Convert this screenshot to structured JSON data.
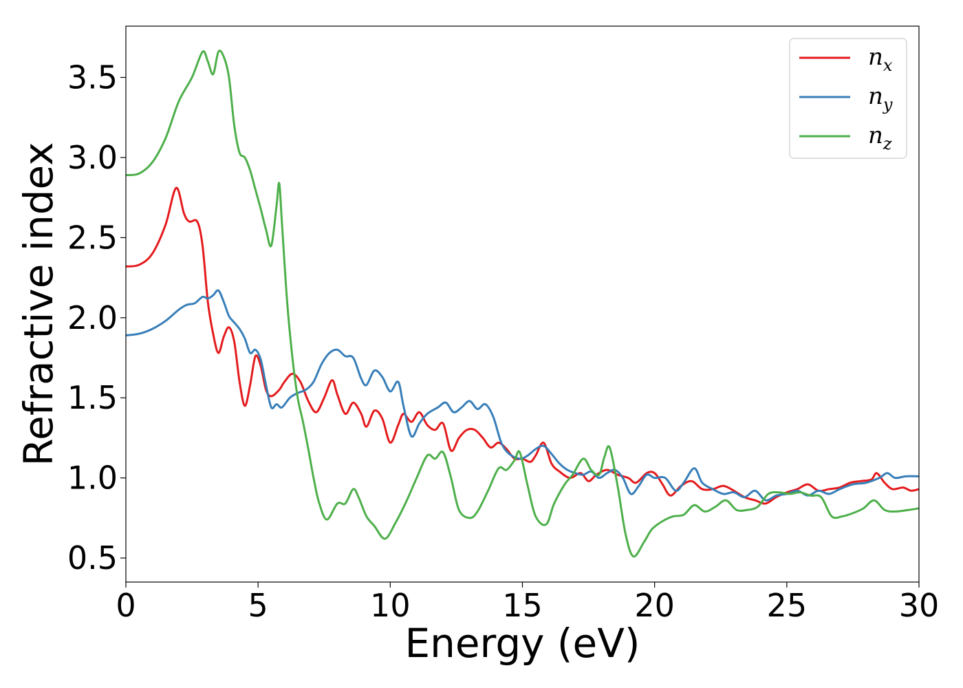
{
  "chart_data": {
    "type": "line",
    "title": "",
    "xlabel": "Energy (eV)",
    "ylabel": "Refractive index",
    "xlim": [
      0,
      30
    ],
    "ylim": [
      0.35,
      3.82
    ],
    "xticks": [
      0,
      5,
      10,
      15,
      20,
      25,
      30
    ],
    "xtick_labels": [
      "0",
      "5",
      "10",
      "15",
      "20",
      "25",
      "30"
    ],
    "yticks": [
      0.5,
      1.0,
      1.5,
      2.0,
      2.5,
      3.0,
      3.5
    ],
    "ytick_labels": [
      "0.5",
      "1.0",
      "1.5",
      "2.0",
      "2.5",
      "3.0",
      "3.5"
    ],
    "grid": false,
    "legend_position": "top-right",
    "series": [
      {
        "name": "n_x",
        "label_base": "n",
        "label_sub": "x",
        "color": "#e41a1c",
        "points": [
          [
            0,
            2.32
          ],
          [
            0.5,
            2.33
          ],
          [
            1.0,
            2.4
          ],
          [
            1.5,
            2.58
          ],
          [
            1.9,
            2.81
          ],
          [
            2.2,
            2.65
          ],
          [
            2.4,
            2.6
          ],
          [
            2.7,
            2.6
          ],
          [
            2.9,
            2.45
          ],
          [
            3.1,
            2.1
          ],
          [
            3.3,
            1.9
          ],
          [
            3.5,
            1.78
          ],
          [
            3.7,
            1.88
          ],
          [
            3.9,
            1.94
          ],
          [
            4.1,
            1.85
          ],
          [
            4.3,
            1.6
          ],
          [
            4.5,
            1.45
          ],
          [
            4.7,
            1.58
          ],
          [
            4.9,
            1.76
          ],
          [
            5.1,
            1.7
          ],
          [
            5.3,
            1.55
          ],
          [
            5.5,
            1.51
          ],
          [
            5.8,
            1.55
          ],
          [
            6.0,
            1.6
          ],
          [
            6.3,
            1.65
          ],
          [
            6.6,
            1.6
          ],
          [
            6.9,
            1.48
          ],
          [
            7.2,
            1.41
          ],
          [
            7.5,
            1.5
          ],
          [
            7.8,
            1.61
          ],
          [
            8.0,
            1.52
          ],
          [
            8.3,
            1.4
          ],
          [
            8.6,
            1.47
          ],
          [
            8.9,
            1.4
          ],
          [
            9.1,
            1.32
          ],
          [
            9.4,
            1.42
          ],
          [
            9.7,
            1.37
          ],
          [
            10.0,
            1.22
          ],
          [
            10.3,
            1.33
          ],
          [
            10.5,
            1.4
          ],
          [
            10.8,
            1.35
          ],
          [
            11.1,
            1.41
          ],
          [
            11.4,
            1.33
          ],
          [
            11.7,
            1.3
          ],
          [
            12.0,
            1.34
          ],
          [
            12.3,
            1.17
          ],
          [
            12.6,
            1.25
          ],
          [
            12.9,
            1.3
          ],
          [
            13.2,
            1.3
          ],
          [
            13.5,
            1.25
          ],
          [
            13.8,
            1.19
          ],
          [
            14.1,
            1.22
          ],
          [
            14.4,
            1.18
          ],
          [
            14.7,
            1.12
          ],
          [
            15.0,
            1.12
          ],
          [
            15.3,
            1.1
          ],
          [
            15.5,
            1.14
          ],
          [
            15.8,
            1.22
          ],
          [
            16.1,
            1.09
          ],
          [
            16.4,
            1.04
          ],
          [
            16.8,
            1.0
          ],
          [
            17.2,
            1.03
          ],
          [
            17.5,
            0.98
          ],
          [
            17.8,
            1.02
          ],
          [
            18.2,
            1.05
          ],
          [
            18.6,
            1.02
          ],
          [
            19.0,
            1.0
          ],
          [
            19.3,
            0.97
          ],
          [
            19.7,
            1.03
          ],
          [
            20.0,
            1.03
          ],
          [
            20.3,
            0.96
          ],
          [
            20.6,
            0.89
          ],
          [
            21.0,
            0.95
          ],
          [
            21.4,
            0.98
          ],
          [
            21.8,
            0.93
          ],
          [
            22.2,
            0.93
          ],
          [
            22.6,
            0.95
          ],
          [
            23.0,
            0.92
          ],
          [
            23.4,
            0.88
          ],
          [
            23.8,
            0.86
          ],
          [
            24.2,
            0.84
          ],
          [
            24.6,
            0.88
          ],
          [
            25.0,
            0.91
          ],
          [
            25.4,
            0.93
          ],
          [
            25.8,
            0.96
          ],
          [
            26.2,
            0.92
          ],
          [
            26.6,
            0.93
          ],
          [
            27.0,
            0.94
          ],
          [
            27.4,
            0.97
          ],
          [
            27.8,
            0.98
          ],
          [
            28.2,
            0.99
          ],
          [
            28.4,
            1.03
          ],
          [
            28.7,
            0.97
          ],
          [
            29.0,
            0.93
          ],
          [
            29.4,
            0.94
          ],
          [
            29.7,
            0.92
          ],
          [
            30.0,
            0.93
          ]
        ]
      },
      {
        "name": "n_y",
        "label_base": "n",
        "label_sub": "y",
        "color": "#377eb8",
        "points": [
          [
            0,
            1.89
          ],
          [
            0.5,
            1.9
          ],
          [
            1.0,
            1.93
          ],
          [
            1.5,
            1.98
          ],
          [
            2.0,
            2.05
          ],
          [
            2.3,
            2.08
          ],
          [
            2.6,
            2.09
          ],
          [
            2.9,
            2.13
          ],
          [
            3.1,
            2.12
          ],
          [
            3.3,
            2.14
          ],
          [
            3.5,
            2.17
          ],
          [
            3.7,
            2.1
          ],
          [
            3.9,
            2.01
          ],
          [
            4.1,
            1.97
          ],
          [
            4.3,
            1.93
          ],
          [
            4.5,
            1.87
          ],
          [
            4.7,
            1.78
          ],
          [
            4.9,
            1.8
          ],
          [
            5.1,
            1.74
          ],
          [
            5.3,
            1.58
          ],
          [
            5.5,
            1.44
          ],
          [
            5.7,
            1.46
          ],
          [
            5.9,
            1.44
          ],
          [
            6.2,
            1.5
          ],
          [
            6.5,
            1.53
          ],
          [
            6.8,
            1.55
          ],
          [
            7.1,
            1.6
          ],
          [
            7.4,
            1.71
          ],
          [
            7.7,
            1.78
          ],
          [
            8.0,
            1.8
          ],
          [
            8.3,
            1.76
          ],
          [
            8.6,
            1.75
          ],
          [
            8.9,
            1.62
          ],
          [
            9.1,
            1.58
          ],
          [
            9.4,
            1.67
          ],
          [
            9.7,
            1.63
          ],
          [
            10.0,
            1.54
          ],
          [
            10.3,
            1.6
          ],
          [
            10.5,
            1.45
          ],
          [
            10.8,
            1.26
          ],
          [
            11.1,
            1.34
          ],
          [
            11.4,
            1.4
          ],
          [
            11.8,
            1.44
          ],
          [
            12.1,
            1.47
          ],
          [
            12.4,
            1.41
          ],
          [
            12.7,
            1.44
          ],
          [
            13.0,
            1.48
          ],
          [
            13.3,
            1.43
          ],
          [
            13.6,
            1.46
          ],
          [
            13.9,
            1.38
          ],
          [
            14.2,
            1.22
          ],
          [
            14.5,
            1.15
          ],
          [
            14.9,
            1.12
          ],
          [
            15.2,
            1.14
          ],
          [
            15.5,
            1.18
          ],
          [
            15.8,
            1.2
          ],
          [
            16.1,
            1.15
          ],
          [
            16.4,
            1.09
          ],
          [
            16.7,
            1.05
          ],
          [
            17.0,
            1.03
          ],
          [
            17.3,
            1.02
          ],
          [
            17.6,
            1.04
          ],
          [
            17.9,
            1.0
          ],
          [
            18.2,
            1.03
          ],
          [
            18.5,
            1.05
          ],
          [
            18.8,
            1.0
          ],
          [
            19.1,
            0.9
          ],
          [
            19.4,
            0.95
          ],
          [
            19.7,
            1.02
          ],
          [
            20.0,
            1.0
          ],
          [
            20.4,
            1.0
          ],
          [
            20.8,
            0.92
          ],
          [
            21.1,
            0.97
          ],
          [
            21.5,
            1.06
          ],
          [
            21.8,
            0.97
          ],
          [
            22.2,
            0.93
          ],
          [
            22.6,
            0.9
          ],
          [
            23.0,
            0.91
          ],
          [
            23.4,
            0.88
          ],
          [
            23.8,
            0.92
          ],
          [
            24.2,
            0.86
          ],
          [
            24.6,
            0.89
          ],
          [
            25.0,
            0.9
          ],
          [
            25.4,
            0.92
          ],
          [
            25.8,
            0.89
          ],
          [
            26.2,
            0.92
          ],
          [
            26.6,
            0.9
          ],
          [
            27.0,
            0.93
          ],
          [
            27.5,
            0.96
          ],
          [
            28.0,
            0.97
          ],
          [
            28.5,
            1.0
          ],
          [
            28.8,
            1.03
          ],
          [
            29.1,
            1.0
          ],
          [
            29.5,
            1.01
          ],
          [
            30.0,
            1.01
          ]
        ]
      },
      {
        "name": "n_z",
        "label_base": "n",
        "label_sub": "z",
        "color": "#4daf4a",
        "points": [
          [
            0,
            2.89
          ],
          [
            0.5,
            2.9
          ],
          [
            1.0,
            2.97
          ],
          [
            1.5,
            3.12
          ],
          [
            2.0,
            3.35
          ],
          [
            2.5,
            3.5
          ],
          [
            2.9,
            3.66
          ],
          [
            3.1,
            3.6
          ],
          [
            3.3,
            3.52
          ],
          [
            3.5,
            3.66
          ],
          [
            3.7,
            3.63
          ],
          [
            3.9,
            3.5
          ],
          [
            4.1,
            3.2
          ],
          [
            4.3,
            3.03
          ],
          [
            4.5,
            3.0
          ],
          [
            4.7,
            2.92
          ],
          [
            4.9,
            2.8
          ],
          [
            5.1,
            2.68
          ],
          [
            5.3,
            2.55
          ],
          [
            5.5,
            2.45
          ],
          [
            5.7,
            2.7
          ],
          [
            5.8,
            2.84
          ],
          [
            5.9,
            2.6
          ],
          [
            6.1,
            2.1
          ],
          [
            6.3,
            1.75
          ],
          [
            6.5,
            1.5
          ],
          [
            6.7,
            1.35
          ],
          [
            6.9,
            1.18
          ],
          [
            7.1,
            1.0
          ],
          [
            7.3,
            0.85
          ],
          [
            7.6,
            0.74
          ],
          [
            8.0,
            0.84
          ],
          [
            8.3,
            0.84
          ],
          [
            8.6,
            0.93
          ],
          [
            8.8,
            0.88
          ],
          [
            9.1,
            0.76
          ],
          [
            9.4,
            0.7
          ],
          [
            9.8,
            0.62
          ],
          [
            10.2,
            0.72
          ],
          [
            10.6,
            0.85
          ],
          [
            11.0,
            1.0
          ],
          [
            11.4,
            1.14
          ],
          [
            11.7,
            1.12
          ],
          [
            12.0,
            1.16
          ],
          [
            12.3,
            1.0
          ],
          [
            12.6,
            0.8
          ],
          [
            13.0,
            0.75
          ],
          [
            13.3,
            0.79
          ],
          [
            13.7,
            0.92
          ],
          [
            14.1,
            1.06
          ],
          [
            14.4,
            1.05
          ],
          [
            14.7,
            1.11
          ],
          [
            14.9,
            1.16
          ],
          [
            15.2,
            0.95
          ],
          [
            15.5,
            0.76
          ],
          [
            15.9,
            0.71
          ],
          [
            16.2,
            0.84
          ],
          [
            16.6,
            0.96
          ],
          [
            16.9,
            1.02
          ],
          [
            17.3,
            1.12
          ],
          [
            17.6,
            1.05
          ],
          [
            17.9,
            1.02
          ],
          [
            18.1,
            1.13
          ],
          [
            18.3,
            1.19
          ],
          [
            18.6,
            0.95
          ],
          [
            18.9,
            0.65
          ],
          [
            19.2,
            0.51
          ],
          [
            19.6,
            0.6
          ],
          [
            19.9,
            0.68
          ],
          [
            20.3,
            0.73
          ],
          [
            20.7,
            0.76
          ],
          [
            21.1,
            0.77
          ],
          [
            21.5,
            0.83
          ],
          [
            21.9,
            0.79
          ],
          [
            22.3,
            0.82
          ],
          [
            22.7,
            0.86
          ],
          [
            23.1,
            0.8
          ],
          [
            23.5,
            0.8
          ],
          [
            23.9,
            0.82
          ],
          [
            24.3,
            0.9
          ],
          [
            24.7,
            0.91
          ],
          [
            25.1,
            0.9
          ],
          [
            25.5,
            0.91
          ],
          [
            25.9,
            0.89
          ],
          [
            26.3,
            0.88
          ],
          [
            26.7,
            0.76
          ],
          [
            27.1,
            0.76
          ],
          [
            27.5,
            0.78
          ],
          [
            27.9,
            0.81
          ],
          [
            28.3,
            0.86
          ],
          [
            28.7,
            0.8
          ],
          [
            29.1,
            0.79
          ],
          [
            29.6,
            0.8
          ],
          [
            30.0,
            0.81
          ]
        ]
      }
    ]
  }
}
